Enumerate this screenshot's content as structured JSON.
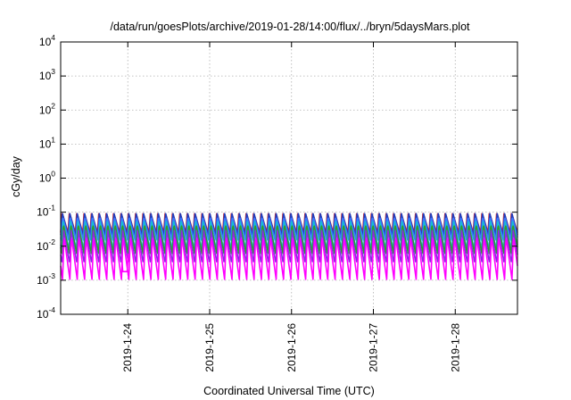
{
  "chart_data": {
    "type": "line",
    "title": "/data/run/goesPlots/archive/2019-01-28/14:00/flux/../bryn/5daysMars.plot",
    "xlabel": "Coordinated Universal Time (UTC)",
    "ylabel": "cGy/day",
    "y_scale": "log",
    "ylim": [
      0.0001,
      10000
    ],
    "xlim_days": [
      0,
      5.58
    ],
    "grid": true,
    "y_ticks": [
      {
        "base": "10",
        "exp": "4",
        "value": 10000
      },
      {
        "base": "10",
        "exp": "3",
        "value": 1000
      },
      {
        "base": "10",
        "exp": "2",
        "value": 100
      },
      {
        "base": "10",
        "exp": "1",
        "value": 10
      },
      {
        "base": "10",
        "exp": "0",
        "value": 1
      },
      {
        "base": "10",
        "exp": "-1",
        "value": 0.1
      },
      {
        "base": "10",
        "exp": "-2",
        "value": 0.01
      },
      {
        "base": "10",
        "exp": "-3",
        "value": 0.001
      },
      {
        "base": "10",
        "exp": "-4",
        "value": 0.0001
      }
    ],
    "x_ticks": [
      {
        "label": "2019-1-24",
        "day": 0.82
      },
      {
        "label": "2019-1-25",
        "day": 1.82
      },
      {
        "label": "2019-1-26",
        "day": 2.82
      },
      {
        "label": "2019-1-27",
        "day": 3.82
      },
      {
        "label": "2019-1-28",
        "day": 4.82
      }
    ],
    "oscillation_period_days": 0.09,
    "start_day": 0,
    "end_day": 5.58,
    "series": [
      {
        "color": "#d62728",
        "peak": 0.1,
        "trough": 0.025
      },
      {
        "color": "#1f3fbf",
        "peak": 0.095,
        "trough": 0.02
      },
      {
        "color": "#3a78ff",
        "peak": 0.075,
        "trough": 0.015
      },
      {
        "color": "#17becf",
        "peak": 0.055,
        "trough": 0.008
      },
      {
        "color": "#2ca02c",
        "peak": 0.045,
        "trough": 0.006
      },
      {
        "color": "#8a2be2",
        "peak": 0.03,
        "trough": 0.003
      },
      {
        "color": "#ff00ff",
        "peak": 0.02,
        "trough": 0.001
      }
    ],
    "annotation_dip": {
      "day": 0.78,
      "value": 0.0018
    }
  }
}
